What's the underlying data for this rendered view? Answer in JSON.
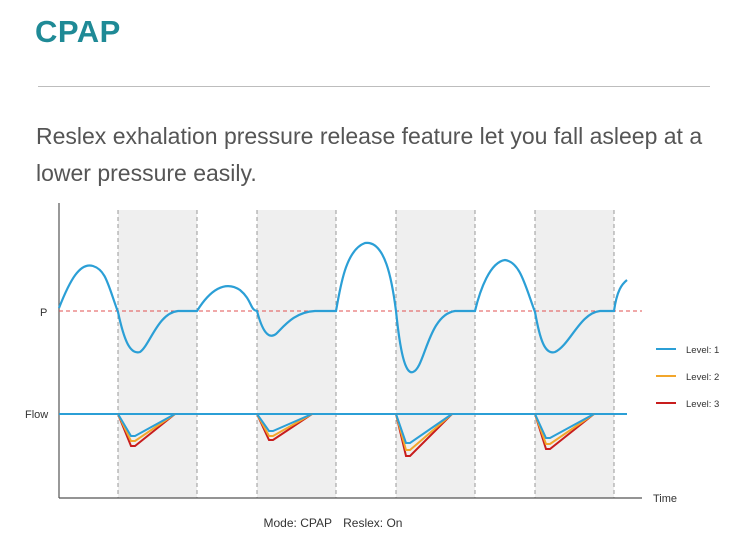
{
  "title": "CPAP",
  "description": "Reslex exhalation pressure release feature let you fall asleep at a lower pressure easily.",
  "axis": {
    "pressure_label": "P",
    "flow_label": "Flow",
    "time_label": "Time"
  },
  "legend": [
    {
      "label": "Level: 1",
      "color": "#2b9fd6"
    },
    {
      "label": "Level: 2",
      "color": "#f2a62b"
    },
    {
      "label": "Level: 3",
      "color": "#c81d1d"
    }
  ],
  "caption": {
    "mode": "Mode: CPAP",
    "reslex": "Reslex: On"
  },
  "colors": {
    "title": "#1f8a96",
    "pressure_curve": "#2b9fd6",
    "reference_line": "#e05050",
    "shaded_band": "#efefef"
  }
}
